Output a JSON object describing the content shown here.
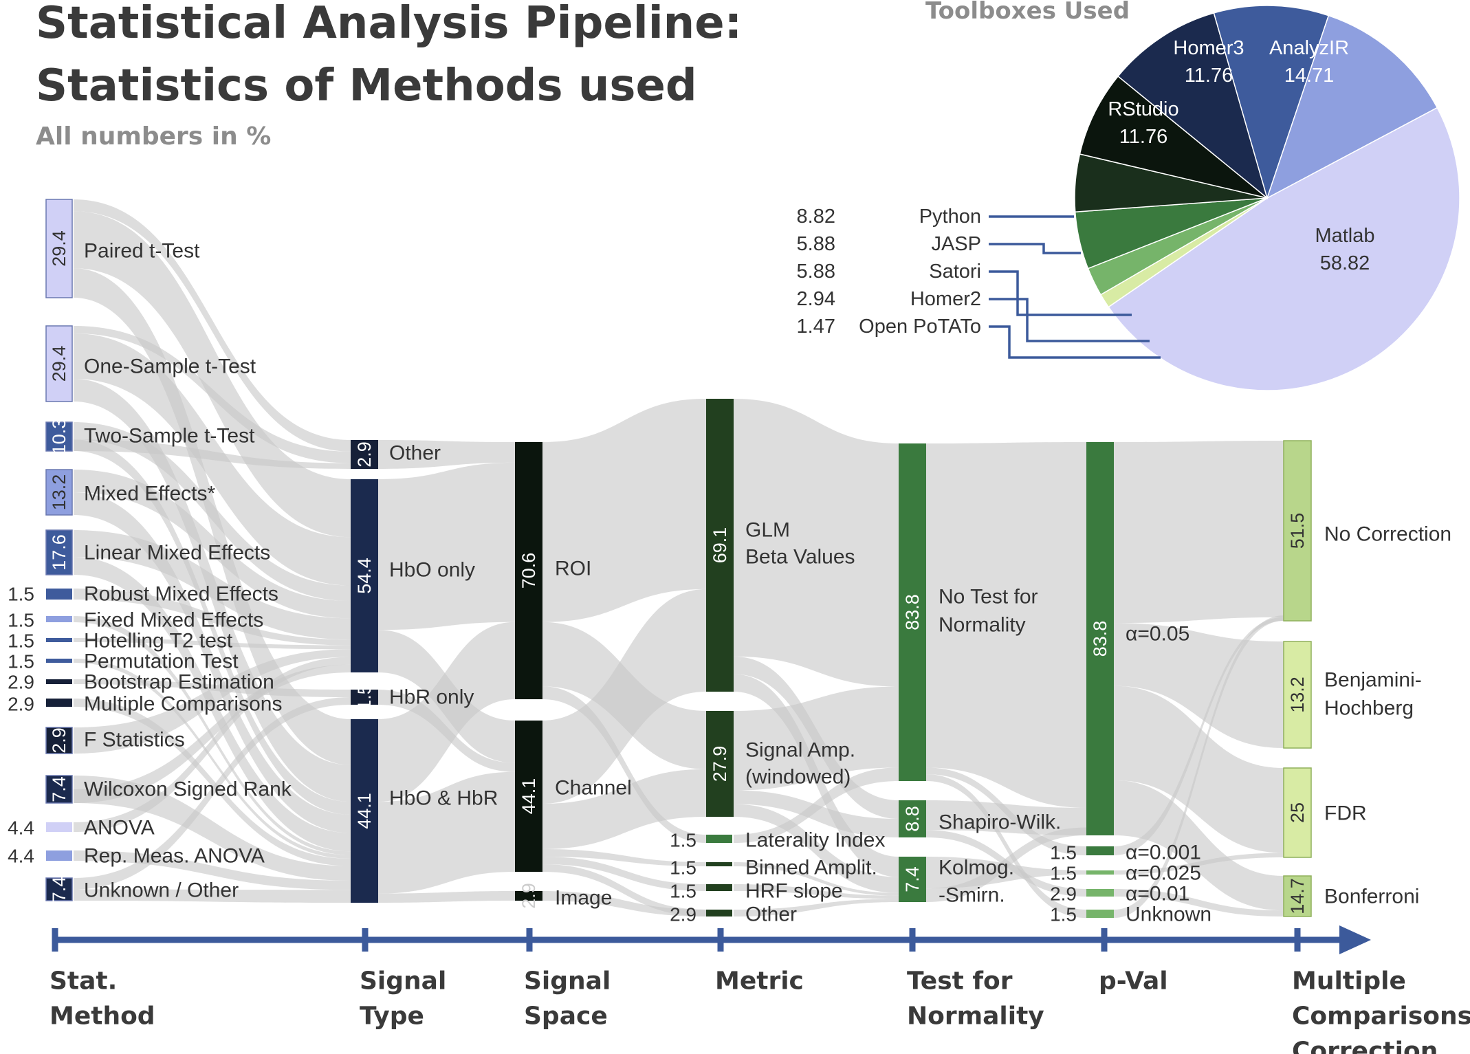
{
  "title_line1": "Statistical Analysis Pipeline:",
  "title_line2": "Statistics of Methods used",
  "subtitle": "All numbers in %",
  "pie_title": "Toolboxes Used",
  "colors": {
    "flow": "#c8c8c8",
    "axis": "#3c5a9b",
    "lavender": "#d0d0f6",
    "periwinkle": "#8e9fdf",
    "mid_blue": "#3e5b9c",
    "navy": "#1b2a4e",
    "dark_navy": "#162038",
    "black_green": "#0b150d",
    "dark_green": "#1a2f1c",
    "forest_green": "#22401f",
    "green": "#3a7a3e",
    "light_green": "#76b46a",
    "pale_green": "#b8d68b",
    "yellow_green": "#d8eba4"
  },
  "stages": [
    {
      "label_lines": [
        "Stat.",
        "Method"
      ]
    },
    {
      "label_lines": [
        "Signal",
        "Type"
      ]
    },
    {
      "label_lines": [
        "Signal",
        "Space"
      ]
    },
    {
      "label_lines": [
        "Metric"
      ]
    },
    {
      "label_lines": [
        "Test for",
        "Normality"
      ]
    },
    {
      "label_lines": [
        "p-Val"
      ]
    },
    {
      "label_lines": [
        "Multiple",
        "Comparisons",
        "Correction"
      ]
    }
  ],
  "stat_methods": [
    {
      "label": "Paired t-Test",
      "value": "29.4"
    },
    {
      "label": "One-Sample t-Test",
      "value": "29.4"
    },
    {
      "label": "Two-Sample t-Test",
      "value": "10.3"
    },
    {
      "label": "Mixed Effects*",
      "value": "13.2"
    },
    {
      "label": "Linear Mixed Effects",
      "value": "17.6"
    },
    {
      "label": "Robust Mixed Effects",
      "value": "1.5"
    },
    {
      "label": "Fixed Mixed Effects",
      "value": "1.5"
    },
    {
      "label": "Hotelling T2 test",
      "value": "1.5"
    },
    {
      "label": "Permutation Test",
      "value": "1.5"
    },
    {
      "label": "Bootstrap Estimation",
      "value": "2.9"
    },
    {
      "label": "Multiple Comparisons",
      "value": "2.9"
    },
    {
      "label": "F Statistics",
      "value": "2.9"
    },
    {
      "label": "Wilcoxon Signed Rank",
      "value": "7.4"
    },
    {
      "label": "ANOVA",
      "value": "4.4"
    },
    {
      "label": "Rep. Meas. ANOVA",
      "value": "4.4"
    },
    {
      "label": "Unknown / Other",
      "value": "7.4"
    }
  ],
  "signal_type": [
    {
      "label": "Other",
      "value": "2.9"
    },
    {
      "label": "HbO only",
      "value": "54.4"
    },
    {
      "label": "HbR only",
      "value": "1.5"
    },
    {
      "label": "HbO & HbR",
      "value": "44.1"
    }
  ],
  "signal_space": [
    {
      "label": "ROI",
      "value": "70.6"
    },
    {
      "label": "Channel",
      "value": "44.1"
    },
    {
      "label": "Image",
      "value": "2.9"
    }
  ],
  "metric": [
    {
      "label_lines": [
        "GLM",
        "Beta Values"
      ],
      "value": "69.1"
    },
    {
      "label_lines": [
        "Signal Amp.",
        "(windowed)"
      ],
      "value": "27.9"
    },
    {
      "label_lines": [
        "Laterality Index"
      ],
      "value": "1.5"
    },
    {
      "label_lines": [
        "Binned Amplit."
      ],
      "value": "1.5"
    },
    {
      "label_lines": [
        "HRF slope"
      ],
      "value": "1.5"
    },
    {
      "label_lines": [
        "Other"
      ],
      "value": "2.9"
    }
  ],
  "normality": [
    {
      "label_lines": [
        "No Test for",
        "Normality"
      ],
      "value": "83.8"
    },
    {
      "label_lines": [
        "Shapiro-Wilk."
      ],
      "value": "8.8"
    },
    {
      "label_lines": [
        "Kolmog.",
        "-Smirn."
      ],
      "value": "7.4"
    }
  ],
  "pval": [
    {
      "label": "α=0.05",
      "value": "83.8"
    },
    {
      "label": "α=0.001",
      "value": "1.5"
    },
    {
      "label": "α=0.025",
      "value": "1.5"
    },
    {
      "label": "α=0.01",
      "value": "2.9"
    },
    {
      "label": "Unknown",
      "value": "1.5"
    }
  ],
  "correction": [
    {
      "label_lines": [
        "No Correction"
      ],
      "value": "51.5"
    },
    {
      "label_lines": [
        "Benjamini-",
        "Hochberg"
      ],
      "value": "13.2"
    },
    {
      "label_lines": [
        "FDR"
      ],
      "value": "25"
    },
    {
      "label_lines": [
        "Bonferroni"
      ],
      "value": "14.7"
    }
  ],
  "toolboxes": [
    {
      "name": "Matlab",
      "value": 58.82,
      "label": "58.82",
      "color": "#d0d0f6",
      "label_mode": "inside"
    },
    {
      "name": "Open PoTATo",
      "value": 1.47,
      "label": "1.47",
      "color": "#d8eba4",
      "label_mode": "leader"
    },
    {
      "name": "Homer2",
      "value": 2.94,
      "label": "2.94",
      "color": "#76b46a",
      "label_mode": "leader"
    },
    {
      "name": "Satori",
      "value": 5.88,
      "label": "5.88",
      "color": "#3a7a3e",
      "label_mode": "leader"
    },
    {
      "name": "JASP",
      "value": 5.88,
      "label": "5.88",
      "color": "#1a2f1c",
      "label_mode": "leader"
    },
    {
      "name": "Python",
      "value": 8.82,
      "label": "8.82",
      "color": "#0b150d",
      "label_mode": "leader"
    },
    {
      "name": "RStudio",
      "value": 11.76,
      "label": "11.76",
      "color": "#1b2a4e",
      "label_mode": "inside"
    },
    {
      "name": "Homer3",
      "value": 11.76,
      "label": "11.76",
      "color": "#3e5b9c",
      "label_mode": "inside"
    },
    {
      "name": "AnalyzIR",
      "value": 14.71,
      "label": "14.71",
      "color": "#8e9fdf",
      "label_mode": "inside"
    }
  ]
}
